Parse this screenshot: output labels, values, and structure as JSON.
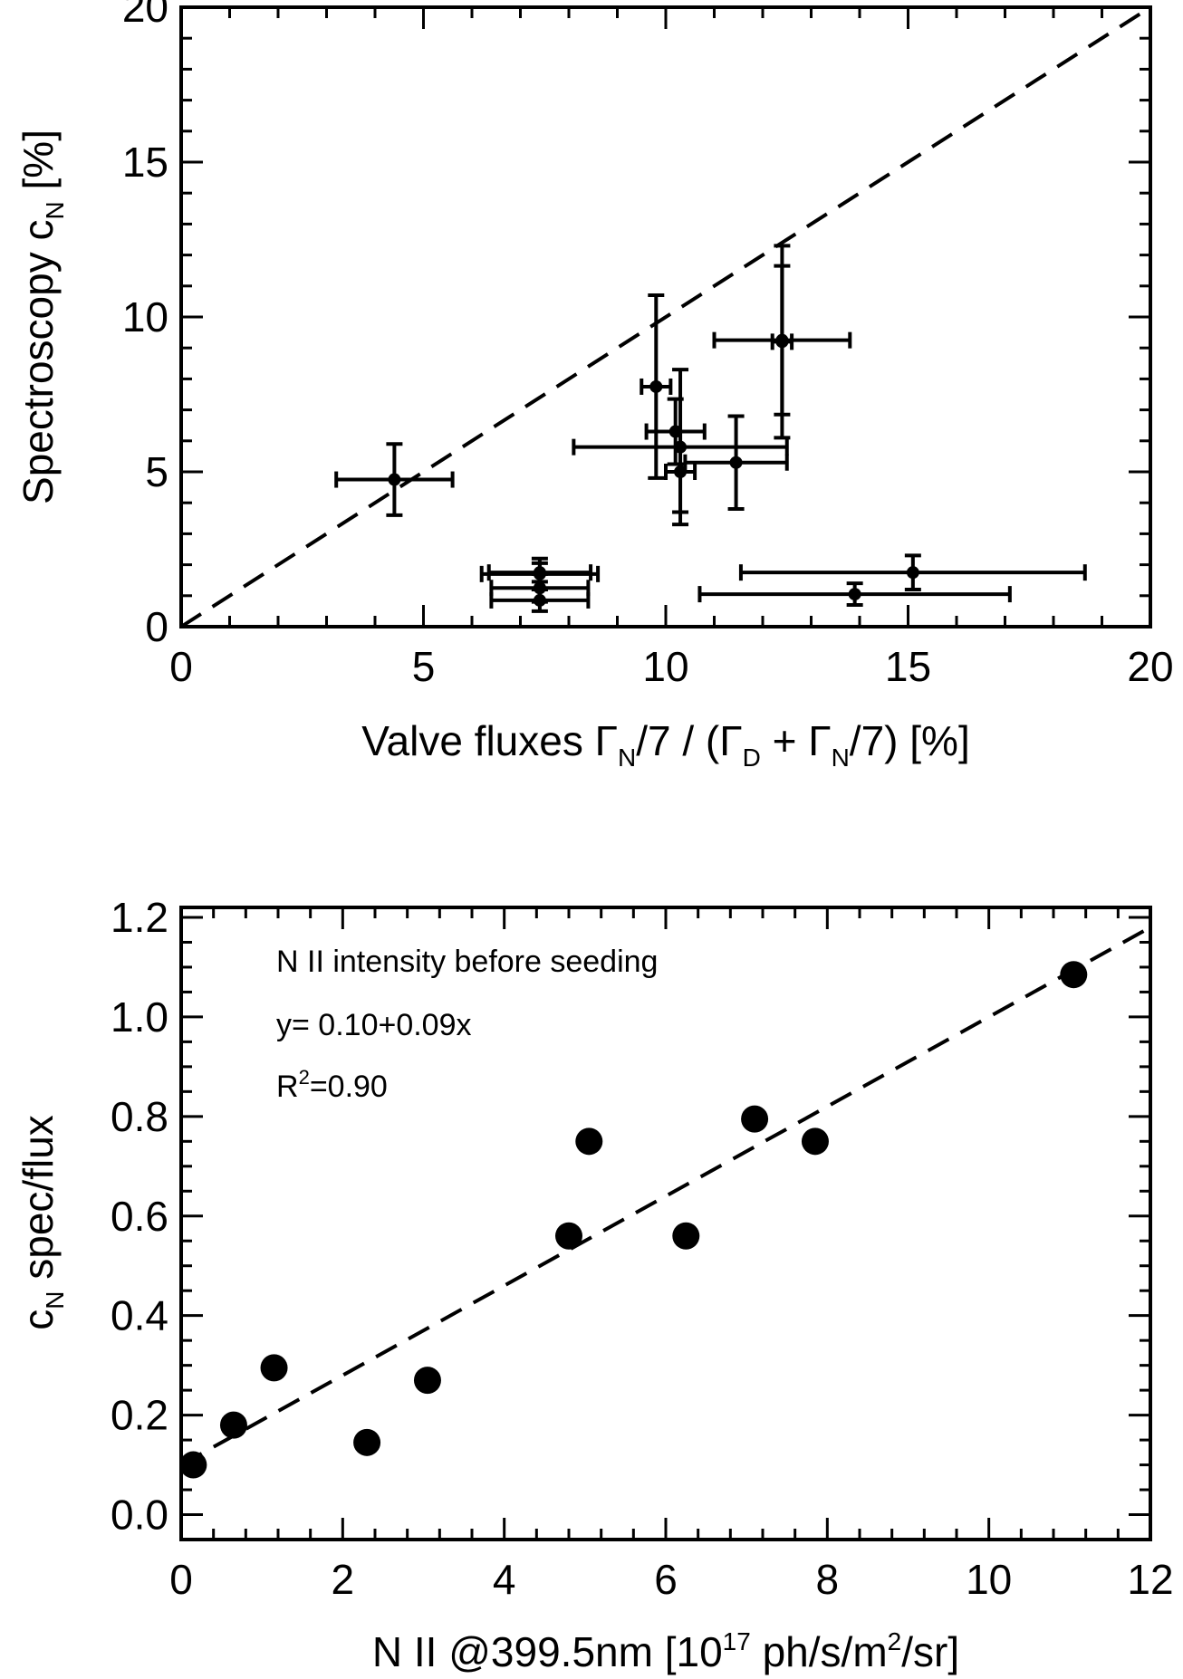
{
  "chart_data": [
    {
      "type": "scatter",
      "id": "top",
      "xlim": [
        0,
        20
      ],
      "ylim": [
        0,
        20
      ],
      "xticks": [
        "0",
        "5",
        "10",
        "15",
        "20"
      ],
      "yticks": [
        "0",
        "5",
        "10",
        "15",
        "20"
      ],
      "xlabel": {
        "pre": "Valve fluxes Γ",
        "sub1": "N",
        "mid1": "/7 / (Γ",
        "sub2": "D",
        "mid2": " + Γ",
        "sub3": "N",
        "post": "/7) [%]"
      },
      "ylabel": {
        "pre": "Spectroscopy c",
        "sub": "N",
        "post": " [%]"
      },
      "reference_line": {
        "style": "dashed",
        "x": [
          0,
          20
        ],
        "y": [
          0,
          20
        ]
      },
      "points": [
        {
          "x": 4.4,
          "y": 4.75,
          "xerr": 1.2,
          "yerr": 1.15
        },
        {
          "x": 7.4,
          "y": 1.75,
          "xerr": 1.05,
          "yerr": 0.3
        },
        {
          "x": 7.4,
          "y": 1.7,
          "xerr": 1.2,
          "yerr": 0.5
        },
        {
          "x": 7.4,
          "y": 1.25,
          "xerr": 1.0,
          "yerr": 0.45
        },
        {
          "x": 7.4,
          "y": 0.85,
          "xerr": 1.0,
          "yerr": 0.35
        },
        {
          "x": 9.8,
          "y": 7.75,
          "xerr": 0.3,
          "yerr": 2.95
        },
        {
          "x": 10.2,
          "y": 6.3,
          "xerr": 0.6,
          "yerr": 1.05
        },
        {
          "x": 10.3,
          "y": 5.8,
          "xerr": 2.2,
          "yerr": 2.5
        },
        {
          "x": 10.3,
          "y": 5.0,
          "xerr": 0.3,
          "yerr": 1.3
        },
        {
          "x": 11.45,
          "y": 5.3,
          "xerr": 1.05,
          "yerr": 1.5
        },
        {
          "x": 12.4,
          "y": 9.25,
          "xerr": 1.4,
          "yerr": 2.4
        },
        {
          "x": 12.4,
          "y": 9.2,
          "xerr": 0.2,
          "yerr": 3.1
        },
        {
          "x": 15.1,
          "y": 1.75,
          "xerr": 3.55,
          "yerr": 0.55
        },
        {
          "x": 13.9,
          "y": 1.05,
          "xerr": 3.2,
          "yerr": 0.35
        }
      ]
    },
    {
      "type": "scatter",
      "id": "bottom",
      "xlim": [
        0,
        12
      ],
      "ylim": [
        -0.05,
        1.22
      ],
      "xticks": [
        "0",
        "2",
        "4",
        "6",
        "8",
        "10",
        "12"
      ],
      "yticks": [
        "0.0",
        "0.2",
        "0.4",
        "0.6",
        "0.8",
        "1.0",
        "1.2"
      ],
      "xlabel": {
        "pre": "N II @399.5nm [10",
        "sup1": "17",
        "mid": " ph/s/m",
        "sup2": "2",
        "post": "/sr]"
      },
      "ylabel": {
        "pre": "c",
        "sub": "N",
        "post": " spec/flux"
      },
      "annotations": [
        {
          "text": "N II intensity before seeding"
        },
        {
          "text": "y= 0.10+0.09x"
        },
        {
          "pre": "R",
          "sup": "2",
          "post": "=0.90"
        }
      ],
      "fit": {
        "intercept": 0.1,
        "slope": 0.09,
        "style": "dashed",
        "x": [
          0,
          12
        ]
      },
      "points": [
        {
          "x": 0.15,
          "y": 0.1
        },
        {
          "x": 0.65,
          "y": 0.18
        },
        {
          "x": 1.15,
          "y": 0.295
        },
        {
          "x": 2.3,
          "y": 0.145
        },
        {
          "x": 3.05,
          "y": 0.27
        },
        {
          "x": 4.8,
          "y": 0.56
        },
        {
          "x": 5.05,
          "y": 0.75
        },
        {
          "x": 6.25,
          "y": 0.56
        },
        {
          "x": 7.1,
          "y": 0.795
        },
        {
          "x": 7.85,
          "y": 0.75
        },
        {
          "x": 11.05,
          "y": 1.085
        }
      ]
    }
  ]
}
